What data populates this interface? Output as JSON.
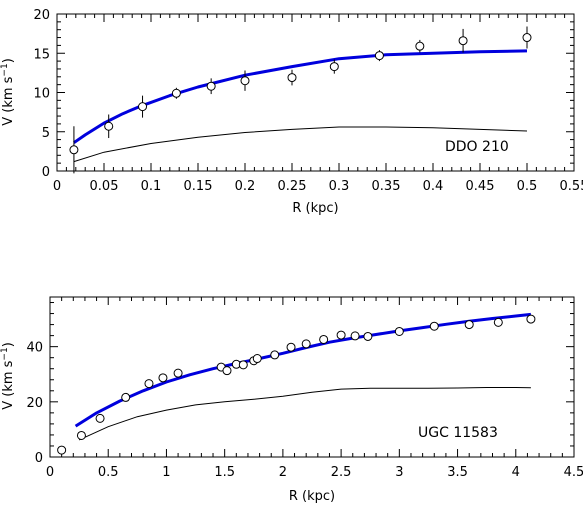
{
  "chart_data": [
    {
      "type": "line",
      "label": "DDO 210",
      "xlabel": "R (kpc)",
      "ylabel_main": "V (km s",
      "ylabel_sup": "−1",
      "ylabel_tail": ")",
      "xlim": [
        0,
        0.55
      ],
      "ylim": [
        0,
        20
      ],
      "xticks": [
        0,
        0.05,
        0.1,
        0.15,
        0.2,
        0.25,
        0.3,
        0.35,
        0.4,
        0.45,
        0.5,
        0.55
      ],
      "xtick_labels": [
        "0",
        "0.05",
        "0.1",
        "0.15",
        "0.2",
        "0.25",
        "0.3",
        "0.35",
        "0.4",
        "0.45",
        "0.5",
        "0.55"
      ],
      "yticks": [
        0,
        5,
        10,
        15,
        20
      ],
      "ytick_labels": [
        "0",
        "5",
        "10",
        "15",
        "20"
      ],
      "observed": {
        "x": [
          0.018,
          0.055,
          0.091,
          0.127,
          0.164,
          0.2,
          0.25,
          0.295,
          0.343,
          0.386,
          0.432,
          0.5
        ],
        "y": [
          2.7,
          5.7,
          8.2,
          9.9,
          10.8,
          11.5,
          11.9,
          13.3,
          14.7,
          15.9,
          16.6,
          17.0
        ],
        "err": [
          3.0,
          1.5,
          1.4,
          0.7,
          1.0,
          1.3,
          1.0,
          0.9,
          0.7,
          0.8,
          1.5,
          1.4
        ]
      },
      "model_fit": {
        "color": "#0000dd",
        "x": [
          0.018,
          0.03,
          0.05,
          0.07,
          0.09,
          0.12,
          0.15,
          0.2,
          0.25,
          0.3,
          0.35,
          0.4,
          0.45,
          0.5
        ],
        "y": [
          3.6,
          4.6,
          6.1,
          7.3,
          8.3,
          9.6,
          10.7,
          12.2,
          13.3,
          14.3,
          14.8,
          15.0,
          15.2,
          15.3
        ]
      },
      "baryonic": {
        "color": "#000000",
        "x": [
          0.018,
          0.05,
          0.1,
          0.15,
          0.2,
          0.25,
          0.3,
          0.35,
          0.4,
          0.45,
          0.5
        ],
        "y": [
          1.2,
          2.4,
          3.5,
          4.3,
          4.9,
          5.3,
          5.6,
          5.6,
          5.5,
          5.3,
          5.1
        ]
      }
    },
    {
      "type": "line",
      "label": "UGC 11583",
      "xlabel": "R (kpc)",
      "ylabel_main": "V (km s",
      "ylabel_sup": "−1",
      "ylabel_tail": ")",
      "xlim": [
        0,
        4.5
      ],
      "ylim": [
        0,
        58
      ],
      "xticks": [
        0,
        0.5,
        1,
        1.5,
        2,
        2.5,
        3,
        3.5,
        4,
        4.5
      ],
      "xtick_labels": [
        "0",
        "0.5",
        "1",
        "1.5",
        "2",
        "2.5",
        "3",
        "3.5",
        "4",
        "4.5"
      ],
      "yticks": [
        0,
        20,
        40
      ],
      "ytick_labels": [
        "0",
        "20",
        "40"
      ],
      "observed": {
        "x": [
          0.1,
          0.27,
          0.43,
          0.65,
          0.85,
          0.97,
          1.1,
          1.47,
          1.52,
          1.6,
          1.66,
          1.75,
          1.78,
          1.93,
          2.07,
          2.2,
          2.35,
          2.5,
          2.62,
          2.73,
          3.0,
          3.3,
          3.6,
          3.85,
          4.13
        ],
        "y": [
          2.5,
          7.8,
          14.0,
          21.6,
          26.6,
          28.7,
          30.4,
          32.6,
          31.3,
          33.6,
          33.4,
          34.9,
          35.7,
          37.0,
          39.8,
          41.0,
          42.6,
          44.2,
          43.9,
          43.7,
          45.5,
          47.4,
          48.0,
          48.8,
          50.0
        ]
      },
      "model_fit": {
        "color": "#0000dd",
        "x": [
          0.22,
          0.4,
          0.6,
          0.8,
          1.0,
          1.2,
          1.4,
          1.6,
          1.8,
          2.0,
          2.2,
          2.4,
          2.6,
          2.8,
          3.0,
          3.2,
          3.4,
          3.6,
          3.8,
          4.0,
          4.13
        ],
        "y": [
          11.2,
          16.0,
          20.3,
          24.0,
          27.2,
          29.8,
          32.0,
          33.9,
          35.7,
          37.6,
          39.7,
          41.6,
          43.1,
          44.4,
          45.7,
          46.9,
          48.1,
          49.2,
          50.2,
          51.1,
          51.7
        ]
      },
      "baryonic": {
        "color": "#000000",
        "x": [
          0.25,
          0.5,
          0.75,
          1.0,
          1.25,
          1.5,
          1.75,
          2.0,
          2.25,
          2.5,
          2.75,
          3.0,
          3.25,
          3.5,
          3.75,
          4.0,
          4.13
        ],
        "y": [
          6.2,
          11.0,
          14.6,
          17.0,
          18.9,
          20.0,
          20.9,
          22.0,
          23.5,
          24.6,
          24.9,
          24.9,
          24.9,
          25.0,
          25.2,
          25.2,
          25.1
        ]
      }
    }
  ]
}
